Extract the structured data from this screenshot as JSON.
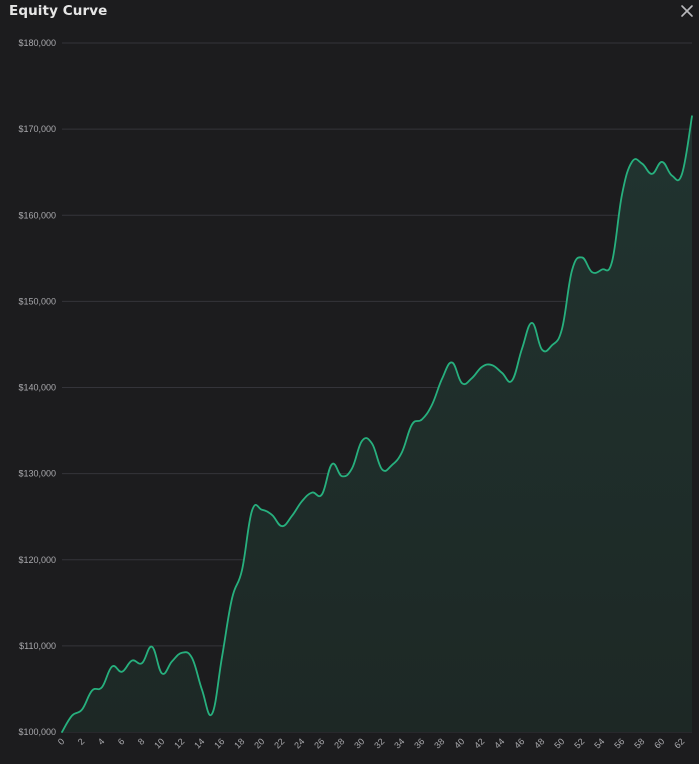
{
  "panel": {
    "title": "Equity Curve",
    "close_icon": "close-icon"
  },
  "colors": {
    "background": "#1c1c1e",
    "line": "#27b07e",
    "area": "#1f2b27",
    "grid": "#34343a",
    "tick_text": "#a9a9ad"
  },
  "chart_data": {
    "type": "area",
    "title": "Equity Curve",
    "xlabel": "",
    "ylabel": "",
    "xlim": [
      0,
      63
    ],
    "ylim": [
      100000,
      180000
    ],
    "grid": true,
    "y_ticks": [
      100000,
      110000,
      120000,
      130000,
      140000,
      150000,
      160000,
      170000,
      180000
    ],
    "y_tick_labels": [
      "$100,000",
      "$110,000",
      "$120,000",
      "$130,000",
      "$140,000",
      "$150,000",
      "$160,000",
      "$170,000",
      "$180,000"
    ],
    "x_ticks": [
      0,
      2,
      4,
      6,
      8,
      10,
      12,
      14,
      16,
      18,
      20,
      22,
      24,
      26,
      28,
      30,
      32,
      34,
      36,
      38,
      40,
      42,
      44,
      46,
      48,
      50,
      52,
      54,
      56,
      58,
      60,
      62
    ],
    "x_tick_labels": [
      "0",
      "2",
      "4",
      "6",
      "8",
      "10",
      "12",
      "14",
      "16",
      "18",
      "20",
      "22",
      "24",
      "26",
      "28",
      "30",
      "32",
      "34",
      "36",
      "38",
      "40",
      "42",
      "44",
      "46",
      "48",
      "50",
      "52",
      "54",
      "56",
      "58",
      "60",
      "62"
    ],
    "x": [
      0,
      1,
      2,
      3,
      4,
      5,
      6,
      7,
      8,
      9,
      10,
      11,
      12,
      13,
      14,
      15,
      16,
      17,
      18,
      19,
      20,
      21,
      22,
      23,
      24,
      25,
      26,
      27,
      28,
      29,
      30,
      31,
      32,
      33,
      34,
      35,
      36,
      37,
      38,
      39,
      40,
      41,
      42,
      43,
      44,
      45,
      46,
      47,
      48,
      49,
      50,
      51,
      52,
      53,
      54,
      55,
      56,
      57,
      58,
      59,
      60,
      61,
      62,
      63
    ],
    "values": [
      100000,
      101900,
      102600,
      104800,
      105200,
      107600,
      107000,
      108300,
      108000,
      109900,
      106800,
      108200,
      109200,
      108600,
      104900,
      102100,
      108700,
      115500,
      118800,
      125700,
      125800,
      125200,
      123900,
      125100,
      126800,
      127800,
      127600,
      131100,
      129700,
      130600,
      133800,
      133500,
      130500,
      131000,
      132500,
      135700,
      136300,
      138000,
      141000,
      142900,
      140500,
      141100,
      142400,
      142600,
      141700,
      140800,
      144500,
      147500,
      144400,
      144900,
      146800,
      153600,
      155100,
      153400,
      153700,
      154600,
      162400,
      166200,
      166000,
      164800,
      166200,
      164600,
      164800,
      171500
    ]
  }
}
